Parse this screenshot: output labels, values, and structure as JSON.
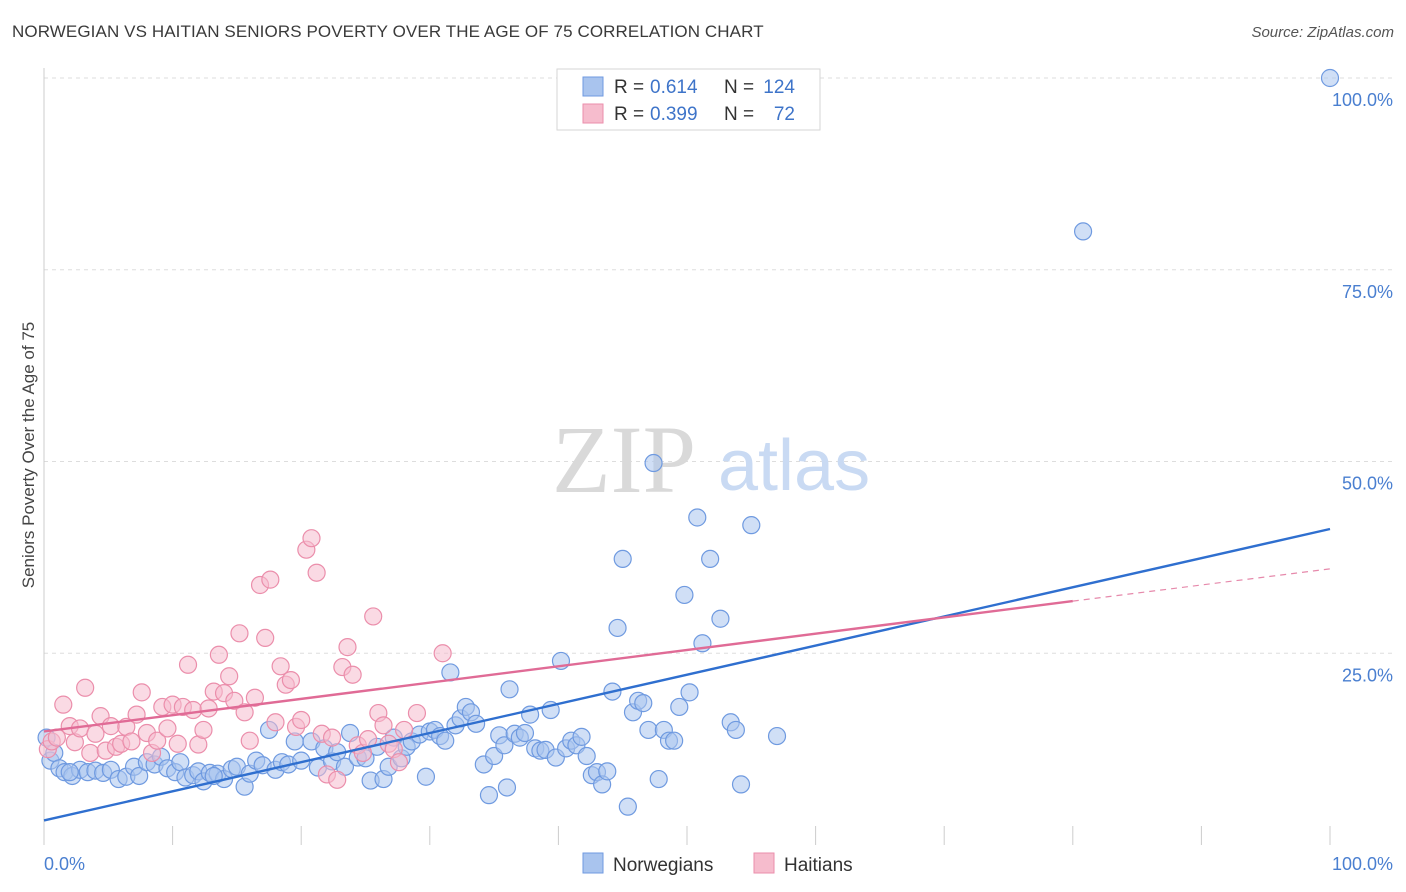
{
  "header": {
    "title": "NORWEGIAN VS HAITIAN SENIORS POVERTY OVER THE AGE OF 75 CORRELATION CHART",
    "source": "Source: ZipAtlas.com"
  },
  "watermark": {
    "zip": "ZIP",
    "atlas": "atlas"
  },
  "colors": {
    "norwegians_fill": "#a9c4ee",
    "norwegians_stroke": "#6f9ae0",
    "norwegians_line": "#2f6fcf",
    "haitians_fill": "#f6bccd",
    "haitians_stroke": "#eb8eab",
    "haitians_line": "#e06b96",
    "tick_label": "#4a7fd0",
    "grid": "#dddddd"
  },
  "legend": {
    "rows": [
      {
        "r_label": "R =",
        "r_value": "0.614",
        "n_label": "N =",
        "n_value": "124"
      },
      {
        "r_label": "R =",
        "r_value": "0.399",
        "n_label": "N =",
        "n_value": "72"
      }
    ]
  },
  "bottom_legend": [
    "Norwegians",
    "Haitians"
  ],
  "chart_data": {
    "type": "scatter",
    "title": "NORWEGIAN VS HAITIAN SENIORS POVERTY OVER THE AGE OF 75 CORRELATION CHART",
    "xlabel": "",
    "ylabel": "Seniors Poverty Over the Age of 75",
    "xlim": [
      0,
      100
    ],
    "ylim": [
      0,
      100
    ],
    "x_tick_labels": [
      "0.0%",
      "100.0%"
    ],
    "y_tick_labels": [
      "25.0%",
      "50.0%",
      "75.0%",
      "100.0%"
    ],
    "y_ticks": [
      25,
      50,
      75,
      100
    ],
    "grid": true,
    "legend_position": "top-center",
    "series": [
      {
        "name": "Norwegians",
        "r": 0.614,
        "n": 124,
        "trend": {
          "x": [
            0,
            100
          ],
          "y": [
            3.2,
            41.2
          ]
        },
        "points": [
          [
            0.2,
            14
          ],
          [
            0.5,
            11
          ],
          [
            0.8,
            12
          ],
          [
            1.2,
            10
          ],
          [
            1.6,
            9.5
          ],
          [
            2.2,
            9
          ],
          [
            2.8,
            9.8
          ],
          [
            3.4,
            9.5
          ],
          [
            4.0,
            9.7
          ],
          [
            4.6,
            9.4
          ],
          [
            5.2,
            9.8
          ],
          [
            5.8,
            8.6
          ],
          [
            6.4,
            8.9
          ],
          [
            7.0,
            10.2
          ],
          [
            7.4,
            9.0
          ],
          [
            8.0,
            10.8
          ],
          [
            8.6,
            10.5
          ],
          [
            9.1,
            11.5
          ],
          [
            9.6,
            10.0
          ],
          [
            10.2,
            9.5
          ],
          [
            10.6,
            10.8
          ],
          [
            11.0,
            8.8
          ],
          [
            11.6,
            9.1
          ],
          [
            12.0,
            9.6
          ],
          [
            12.4,
            8.3
          ],
          [
            12.9,
            9.4
          ],
          [
            13.5,
            9.3
          ],
          [
            14.0,
            8.6
          ],
          [
            14.6,
            9.9
          ],
          [
            15.0,
            10.2
          ],
          [
            15.6,
            7.6
          ],
          [
            16.0,
            9.3
          ],
          [
            16.5,
            11.0
          ],
          [
            17.0,
            10.4
          ],
          [
            17.5,
            15.0
          ],
          [
            18.0,
            9.8
          ],
          [
            18.5,
            10.8
          ],
          [
            19.0,
            10.5
          ],
          [
            19.5,
            13.5
          ],
          [
            20.0,
            11.0
          ],
          [
            20.8,
            13.5
          ],
          [
            21.3,
            10.1
          ],
          [
            21.8,
            12.6
          ],
          [
            22.4,
            10.9
          ],
          [
            22.8,
            12.1
          ],
          [
            23.4,
            10.2
          ],
          [
            23.8,
            14.6
          ],
          [
            24.4,
            11.4
          ],
          [
            25.0,
            11.3
          ],
          [
            25.4,
            8.4
          ],
          [
            25.9,
            12.8
          ],
          [
            26.4,
            8.6
          ],
          [
            26.8,
            10.2
          ],
          [
            27.2,
            14.0
          ],
          [
            27.8,
            11.3
          ],
          [
            28.2,
            12.8
          ],
          [
            28.6,
            13.5
          ],
          [
            29.2,
            14.4
          ],
          [
            29.7,
            8.9
          ],
          [
            30.0,
            14.8
          ],
          [
            30.4,
            15.0
          ],
          [
            30.8,
            14.2
          ],
          [
            31.2,
            13.6
          ],
          [
            31.6,
            22.5
          ],
          [
            32.0,
            15.6
          ],
          [
            32.4,
            16.5
          ],
          [
            32.8,
            18.0
          ],
          [
            33.2,
            17.3
          ],
          [
            33.6,
            15.8
          ],
          [
            34.2,
            10.5
          ],
          [
            34.6,
            6.5
          ],
          [
            35.0,
            11.6
          ],
          [
            35.4,
            14.3
          ],
          [
            35.8,
            13.0
          ],
          [
            36.2,
            20.3
          ],
          [
            36.6,
            14.5
          ],
          [
            37.0,
            14.0
          ],
          [
            37.4,
            14.6
          ],
          [
            37.8,
            17.0
          ],
          [
            38.2,
            12.6
          ],
          [
            38.6,
            12.3
          ],
          [
            39.0,
            12.4
          ],
          [
            39.4,
            17.6
          ],
          [
            39.8,
            11.4
          ],
          [
            40.2,
            24.0
          ],
          [
            40.6,
            12.6
          ],
          [
            41.0,
            13.6
          ],
          [
            41.4,
            13.0
          ],
          [
            41.8,
            14.1
          ],
          [
            42.2,
            11.6
          ],
          [
            42.6,
            9.1
          ],
          [
            43.0,
            9.5
          ],
          [
            43.4,
            7.9
          ],
          [
            43.8,
            9.6
          ],
          [
            44.2,
            20.0
          ],
          [
            44.6,
            28.3
          ],
          [
            45.0,
            37.3
          ],
          [
            45.4,
            5.0
          ],
          [
            45.8,
            17.3
          ],
          [
            46.2,
            18.8
          ],
          [
            46.6,
            18.5
          ],
          [
            47.0,
            15.0
          ],
          [
            47.4,
            49.8
          ],
          [
            47.8,
            8.6
          ],
          [
            48.2,
            15.0
          ],
          [
            48.6,
            13.6
          ],
          [
            49.0,
            13.6
          ],
          [
            49.4,
            18.0
          ],
          [
            49.8,
            32.6
          ],
          [
            50.2,
            19.9
          ],
          [
            50.8,
            42.7
          ],
          [
            51.2,
            26.3
          ],
          [
            51.8,
            37.3
          ],
          [
            52.6,
            29.5
          ],
          [
            53.4,
            16.0
          ],
          [
            53.8,
            15.0
          ],
          [
            54.2,
            7.9
          ],
          [
            55.0,
            41.7
          ],
          [
            57.0,
            14.2
          ],
          [
            80.8,
            80.0
          ],
          [
            100.0,
            100.0
          ],
          [
            13.2,
            9.0
          ],
          [
            2.0,
            9.5
          ],
          [
            36.0,
            7.5
          ]
        ]
      },
      {
        "name": "Haitians",
        "r": 0.399,
        "n": 72,
        "trend": {
          "x": [
            0,
            80
          ],
          "y": [
            14.8,
            31.8
          ]
        },
        "trend_dashed": {
          "x": [
            80,
            100
          ],
          "y": [
            31.8,
            36.0
          ]
        },
        "points": [
          [
            0.3,
            12.5
          ],
          [
            0.6,
            13.5
          ],
          [
            1.0,
            14.0
          ],
          [
            1.5,
            18.3
          ],
          [
            2.0,
            15.5
          ],
          [
            2.4,
            13.4
          ],
          [
            2.8,
            15.2
          ],
          [
            3.2,
            20.5
          ],
          [
            3.6,
            12.0
          ],
          [
            4.0,
            14.5
          ],
          [
            4.4,
            16.8
          ],
          [
            4.8,
            12.3
          ],
          [
            5.2,
            15.5
          ],
          [
            5.6,
            12.8
          ],
          [
            6.0,
            13.2
          ],
          [
            6.4,
            15.4
          ],
          [
            6.8,
            13.5
          ],
          [
            7.2,
            17.0
          ],
          [
            7.6,
            19.9
          ],
          [
            8.0,
            14.6
          ],
          [
            8.4,
            12.0
          ],
          [
            8.8,
            13.6
          ],
          [
            9.2,
            18.0
          ],
          [
            9.6,
            15.2
          ],
          [
            10.0,
            18.3
          ],
          [
            10.4,
            13.2
          ],
          [
            10.8,
            18.0
          ],
          [
            11.2,
            23.5
          ],
          [
            11.6,
            17.6
          ],
          [
            12.0,
            13.1
          ],
          [
            12.4,
            15.0
          ],
          [
            12.8,
            17.8
          ],
          [
            13.2,
            20.0
          ],
          [
            13.6,
            24.8
          ],
          [
            14.0,
            19.8
          ],
          [
            14.4,
            22.0
          ],
          [
            14.8,
            18.8
          ],
          [
            15.2,
            27.6
          ],
          [
            15.6,
            17.3
          ],
          [
            16.0,
            13.6
          ],
          [
            16.4,
            19.2
          ],
          [
            16.8,
            33.9
          ],
          [
            17.2,
            27.0
          ],
          [
            17.6,
            34.6
          ],
          [
            18.0,
            16.0
          ],
          [
            18.4,
            23.3
          ],
          [
            18.8,
            20.9
          ],
          [
            19.2,
            21.5
          ],
          [
            19.6,
            15.4
          ],
          [
            20.0,
            16.3
          ],
          [
            20.4,
            38.5
          ],
          [
            20.8,
            40.0
          ],
          [
            21.2,
            35.5
          ],
          [
            21.6,
            14.5
          ],
          [
            22.0,
            9.2
          ],
          [
            22.4,
            14.0
          ],
          [
            22.8,
            8.5
          ],
          [
            23.2,
            23.2
          ],
          [
            23.6,
            25.8
          ],
          [
            24.0,
            22.2
          ],
          [
            24.4,
            13.0
          ],
          [
            24.8,
            12.0
          ],
          [
            25.2,
            13.8
          ],
          [
            25.6,
            29.8
          ],
          [
            26.0,
            17.2
          ],
          [
            26.4,
            15.6
          ],
          [
            26.8,
            13.2
          ],
          [
            27.2,
            12.5
          ],
          [
            27.6,
            10.8
          ],
          [
            28.0,
            15.0
          ],
          [
            29.0,
            17.2
          ],
          [
            31.0,
            25.0
          ]
        ]
      }
    ]
  }
}
